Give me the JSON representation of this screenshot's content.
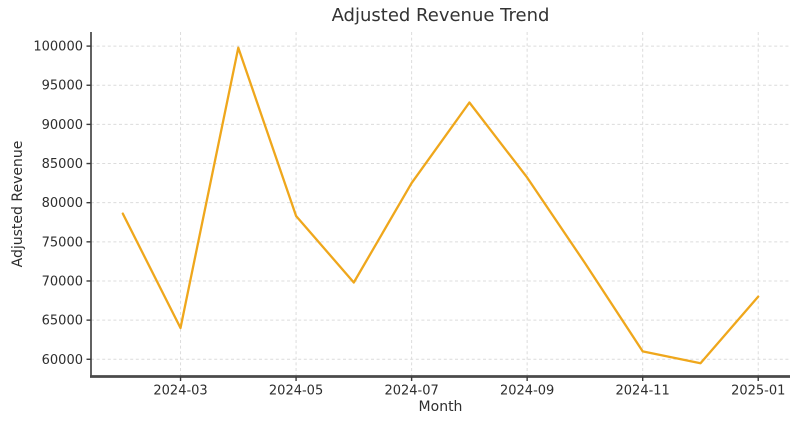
{
  "chart_data": {
    "type": "line",
    "title": "Adjusted Revenue Trend",
    "xlabel": "Month",
    "ylabel": "Adjusted Revenue",
    "x": [
      "2024-02",
      "2024-03",
      "2024-04",
      "2024-05",
      "2024-06",
      "2024-07",
      "2024-08",
      "2024-09",
      "2024-10",
      "2024-11",
      "2024-12",
      "2025-01"
    ],
    "series": [
      {
        "name": "Adjusted Revenue",
        "values": [
          78600,
          64000,
          99800,
          78300,
          69800,
          82500,
          92800,
          83200,
          72300,
          61000,
          59500,
          68000
        ]
      }
    ],
    "x_tick_labels": [
      "2024-03",
      "2024-05",
      "2024-07",
      "2024-09",
      "2024-11",
      "2025-01"
    ],
    "x_tick_indices": [
      1,
      3,
      5,
      7,
      9,
      11
    ],
    "y_ticks": [
      60000,
      65000,
      70000,
      75000,
      80000,
      85000,
      90000,
      95000,
      100000
    ],
    "ylim": [
      57800,
      101800
    ],
    "xlim": [
      -0.55,
      11.55
    ],
    "grid": true,
    "grid_style": "dashed",
    "legend": false,
    "line_color": "#EFA71C",
    "axis_color": "#3a3a3a",
    "grid_color": "#dcdcdc",
    "text_color": "#2e2e2e",
    "background": "#ffffff"
  }
}
